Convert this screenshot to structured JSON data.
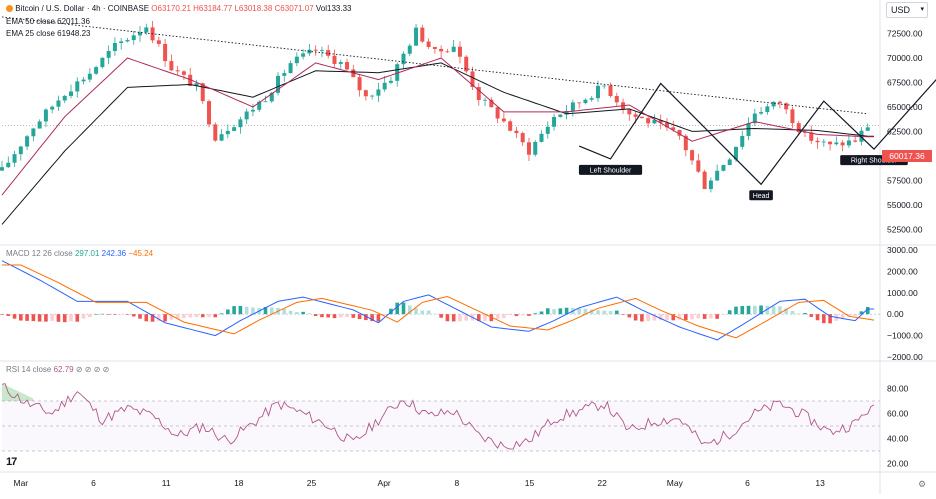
{
  "header": {
    "symbol_line": "Bitcoin / U.S. Dollar · 4h · COINBASE",
    "ohlc": "O63170.21 H63184.77 L63018.38 C63071.07",
    "volume": "Vol133.33",
    "ema50": "EMA 50 close 62011.36",
    "ema25": "EMA 25 close 61948.23",
    "currency": "USD"
  },
  "colors": {
    "up": "#26a69a",
    "down": "#ef5350",
    "ema50": "#131722",
    "ema25": "#b02a5b",
    "macd": "#2962ff",
    "signal": "#ff6d00",
    "rsi": "#b0588a",
    "pattern": "#131722"
  },
  "chart_data": [
    {
      "type": "candlestick",
      "name": "price",
      "x_ticks": [
        "Mar",
        "6",
        "11",
        "18",
        "25",
        "Apr",
        "8",
        "15",
        "22",
        "May",
        "6",
        "13"
      ],
      "y_ticks": [
        "72500.00",
        "70000.00",
        "67500.00",
        "65000.00",
        "62500.00",
        "57500.00",
        "55000.00",
        "52500.00"
      ],
      "ylim": [
        51000,
        74500
      ],
      "last_price_label": "60017.36",
      "key_points": [
        {
          "t": 0,
          "v": 58500
        },
        {
          "t": 5,
          "v": 63000
        },
        {
          "t": 10,
          "v": 66500
        },
        {
          "t": 14,
          "v": 68500
        },
        {
          "t": 18,
          "v": 71200
        },
        {
          "t": 23,
          "v": 73300
        },
        {
          "t": 27,
          "v": 69000
        },
        {
          "t": 31,
          "v": 67000
        },
        {
          "t": 34,
          "v": 62000
        },
        {
          "t": 38,
          "v": 63800
        },
        {
          "t": 42,
          "v": 66000
        },
        {
          "t": 46,
          "v": 69500
        },
        {
          "t": 50,
          "v": 70800
        },
        {
          "t": 54,
          "v": 69500
        },
        {
          "t": 58,
          "v": 66000
        },
        {
          "t": 62,
          "v": 68000
        },
        {
          "t": 66,
          "v": 72800
        },
        {
          "t": 69,
          "v": 70500
        },
        {
          "t": 72,
          "v": 71300
        },
        {
          "t": 76,
          "v": 66000
        },
        {
          "t": 80,
          "v": 63500
        },
        {
          "t": 84,
          "v": 60500
        },
        {
          "t": 88,
          "v": 64000
        },
        {
          "t": 92,
          "v": 65500
        },
        {
          "t": 96,
          "v": 67200
        },
        {
          "t": 100,
          "v": 64300
        },
        {
          "t": 104,
          "v": 63300
        },
        {
          "t": 108,
          "v": 62000
        },
        {
          "t": 112,
          "v": 57000
        },
        {
          "t": 116,
          "v": 60000
        },
        {
          "t": 120,
          "v": 64500
        },
        {
          "t": 124,
          "v": 65500
        },
        {
          "t": 128,
          "v": 62000
        },
        {
          "t": 132,
          "v": 61000
        },
        {
          "t": 136,
          "v": 61600
        },
        {
          "t": 138,
          "v": 63100
        }
      ],
      "ema50_points": [
        {
          "t": 0,
          "v": 53000
        },
        {
          "t": 10,
          "v": 60500
        },
        {
          "t": 20,
          "v": 67000
        },
        {
          "t": 30,
          "v": 67300
        },
        {
          "t": 40,
          "v": 66000
        },
        {
          "t": 50,
          "v": 68700
        },
        {
          "t": 60,
          "v": 68500
        },
        {
          "t": 70,
          "v": 69500
        },
        {
          "t": 80,
          "v": 66500
        },
        {
          "t": 90,
          "v": 64300
        },
        {
          "t": 100,
          "v": 64800
        },
        {
          "t": 110,
          "v": 62500
        },
        {
          "t": 120,
          "v": 62800
        },
        {
          "t": 130,
          "v": 62600
        },
        {
          "t": 138,
          "v": 62011
        }
      ],
      "ema25_points": [
        {
          "t": 0,
          "v": 56000
        },
        {
          "t": 10,
          "v": 64000
        },
        {
          "t": 20,
          "v": 70000
        },
        {
          "t": 30,
          "v": 67800
        },
        {
          "t": 40,
          "v": 65000
        },
        {
          "t": 50,
          "v": 69500
        },
        {
          "t": 60,
          "v": 67800
        },
        {
          "t": 70,
          "v": 70000
        },
        {
          "t": 80,
          "v": 64500
        },
        {
          "t": 90,
          "v": 64500
        },
        {
          "t": 100,
          "v": 65200
        },
        {
          "t": 110,
          "v": 61500
        },
        {
          "t": 120,
          "v": 63500
        },
        {
          "t": 130,
          "v": 62200
        },
        {
          "t": 138,
          "v": 61948
        }
      ],
      "trendline": [
        {
          "t": 0,
          "v": 74200
        },
        {
          "t": 138,
          "v": 64300
        }
      ],
      "support_line_value": 60017.36,
      "pattern": {
        "path": [
          {
            "t": 92,
            "v": 61000
          },
          {
            "t": 97,
            "v": 59700
          },
          {
            "t": 105,
            "v": 67400
          },
          {
            "t": 121,
            "v": 57100
          },
          {
            "t": 131,
            "v": 65600
          },
          {
            "t": 139,
            "v": 60700
          },
          {
            "t": 152,
            "v": 70000
          }
        ],
        "labels": [
          {
            "text": "Left Shoulder",
            "t": 97,
            "v": 59700
          },
          {
            "text": "Head",
            "t": 121,
            "v": 57100
          },
          {
            "text": "Right Shoulder",
            "t": 139,
            "v": 60700
          }
        ]
      }
    },
    {
      "type": "histogram",
      "name": "MACD 12 26 close",
      "values_label": [
        "297.01",
        "242.36",
        "−45.24"
      ],
      "y_ticks": [
        "3000.00",
        "2000.00",
        "1000.00",
        "0.00",
        "−1000.00",
        "−2000.00"
      ],
      "ylim": [
        -2000,
        3000
      ],
      "key_points": [
        {
          "t": 0,
          "v": 2500
        },
        {
          "t": 6,
          "v": 1600
        },
        {
          "t": 12,
          "v": 600
        },
        {
          "t": 20,
          "v": 600
        },
        {
          "t": 26,
          "v": -400
        },
        {
          "t": 30,
          "v": -700
        },
        {
          "t": 34,
          "v": -1000
        },
        {
          "t": 38,
          "v": -300
        },
        {
          "t": 44,
          "v": 600
        },
        {
          "t": 48,
          "v": 800
        },
        {
          "t": 52,
          "v": 500
        },
        {
          "t": 56,
          "v": 200
        },
        {
          "t": 60,
          "v": -400
        },
        {
          "t": 64,
          "v": 600
        },
        {
          "t": 68,
          "v": 900
        },
        {
          "t": 72,
          "v": 300
        },
        {
          "t": 78,
          "v": -600
        },
        {
          "t": 84,
          "v": -800
        },
        {
          "t": 88,
          "v": -300
        },
        {
          "t": 92,
          "v": 300
        },
        {
          "t": 98,
          "v": 800
        },
        {
          "t": 102,
          "v": 200
        },
        {
          "t": 108,
          "v": -600
        },
        {
          "t": 114,
          "v": -1200
        },
        {
          "t": 118,
          "v": -500
        },
        {
          "t": 124,
          "v": 600
        },
        {
          "t": 128,
          "v": 700
        },
        {
          "t": 132,
          "v": -100
        },
        {
          "t": 136,
          "v": -300
        },
        {
          "t": 138,
          "v": 242
        }
      ]
    },
    {
      "type": "line",
      "name": "RSI 14 close",
      "value_label": "62.79",
      "y_ticks": [
        "80.00",
        "60.00",
        "40.00",
        "20.00"
      ],
      "ylim": [
        18,
        90
      ],
      "bands": [
        70,
        50,
        30
      ],
      "key_points": [
        {
          "t": 0,
          "v": 82
        },
        {
          "t": 4,
          "v": 68
        },
        {
          "t": 8,
          "v": 60
        },
        {
          "t": 12,
          "v": 78
        },
        {
          "t": 16,
          "v": 55
        },
        {
          "t": 20,
          "v": 64
        },
        {
          "t": 24,
          "v": 58
        },
        {
          "t": 28,
          "v": 42
        },
        {
          "t": 32,
          "v": 50
        },
        {
          "t": 36,
          "v": 38
        },
        {
          "t": 40,
          "v": 52
        },
        {
          "t": 44,
          "v": 68
        },
        {
          "t": 48,
          "v": 60
        },
        {
          "t": 52,
          "v": 50
        },
        {
          "t": 56,
          "v": 36
        },
        {
          "t": 60,
          "v": 55
        },
        {
          "t": 64,
          "v": 72
        },
        {
          "t": 68,
          "v": 58
        },
        {
          "t": 72,
          "v": 62
        },
        {
          "t": 76,
          "v": 42
        },
        {
          "t": 80,
          "v": 34
        },
        {
          "t": 84,
          "v": 38
        },
        {
          "t": 88,
          "v": 56
        },
        {
          "t": 92,
          "v": 62
        },
        {
          "t": 96,
          "v": 68
        },
        {
          "t": 100,
          "v": 46
        },
        {
          "t": 104,
          "v": 54
        },
        {
          "t": 108,
          "v": 56
        },
        {
          "t": 112,
          "v": 34
        },
        {
          "t": 116,
          "v": 44
        },
        {
          "t": 120,
          "v": 60
        },
        {
          "t": 124,
          "v": 68
        },
        {
          "t": 128,
          "v": 58
        },
        {
          "t": 132,
          "v": 45
        },
        {
          "t": 136,
          "v": 52
        },
        {
          "t": 138,
          "v": 63
        }
      ]
    }
  ]
}
